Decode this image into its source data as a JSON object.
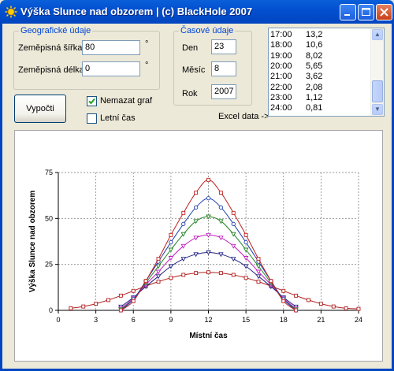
{
  "window": {
    "title": "Výška Slunce nad obzorem  |  (c) BlackHole 2007"
  },
  "geo": {
    "group_title": "Geografické údaje",
    "lat_label": "Zeměpisná šířka",
    "lat_value": "80",
    "lon_label": "Zeměpisná délka",
    "lon_value": "0",
    "unit": "°"
  },
  "time": {
    "group_title": "Časové údaje",
    "day_label": "Den",
    "day_value": "23",
    "month_label": "Měsíc",
    "month_value": "8",
    "year_label": "Rok",
    "year_value": "2007"
  },
  "actions": {
    "compute_label": "Vypočti",
    "keep_graph_label": "Nemazat graf",
    "keep_graph_checked": true,
    "summer_time_label": "Letní čas",
    "summer_time_checked": false,
    "excel_label": "Excel data ->"
  },
  "listbox": {
    "rows": [
      {
        "time": "17:00",
        "value": "13,2"
      },
      {
        "time": "18:00",
        "value": "10,6"
      },
      {
        "time": "19:00",
        "value": "8,02"
      },
      {
        "time": "20:00",
        "value": "5,65"
      },
      {
        "time": "21:00",
        "value": "3,62"
      },
      {
        "time": "22:00",
        "value": "2,08"
      },
      {
        "time": "23:00",
        "value": "1,12"
      },
      {
        "time": "24:00",
        "value": "0,81"
      }
    ]
  },
  "chart_data": {
    "type": "line",
    "xlabel": "Místní čas",
    "ylabel": "Výška Slunce nad obzorem",
    "x_ticks": [
      "0",
      "3",
      "6",
      "9",
      "12",
      "15",
      "18",
      "21",
      "24"
    ],
    "y_ticks": [
      "0",
      "25",
      "50",
      "75"
    ],
    "xlim": [
      0,
      24
    ],
    "ylim": [
      0,
      75
    ],
    "grid": true,
    "series": [
      {
        "color": "#b22020",
        "marker": "square",
        "x": [
          1,
          2,
          3,
          4,
          5,
          6,
          7,
          8,
          9,
          10,
          11,
          12,
          13,
          14,
          15,
          16,
          17,
          18,
          19,
          20,
          21,
          22,
          23,
          24
        ],
        "values": [
          1.1,
          2.1,
          3.6,
          5.6,
          8.0,
          10.6,
          13.2,
          15.6,
          17.7,
          19.3,
          20.3,
          20.7,
          20.3,
          19.3,
          17.7,
          15.6,
          13.2,
          10.6,
          8.0,
          5.6,
          3.6,
          2.1,
          1.1,
          0.8
        ]
      },
      {
        "color": "#202080",
        "marker": "triangle",
        "x": [
          5,
          6,
          7,
          8,
          9,
          10,
          11,
          12,
          13,
          14,
          15,
          16,
          17,
          18,
          19
        ],
        "values": [
          2,
          7,
          13,
          18.5,
          24,
          28,
          30.5,
          31.5,
          30.5,
          28,
          24,
          18.5,
          13,
          7,
          2
        ]
      },
      {
        "color": "#c020c0",
        "marker": "triangle",
        "x": [
          5,
          6,
          7,
          8,
          9,
          10,
          11,
          12,
          13,
          14,
          15,
          16,
          17,
          18,
          19
        ],
        "values": [
          1,
          6.5,
          14,
          21,
          28.5,
          35,
          39.5,
          41,
          39.5,
          35,
          28.5,
          21,
          14,
          6.5,
          1
        ]
      },
      {
        "color": "#208020",
        "marker": "triangle",
        "x": [
          5,
          6,
          7,
          8,
          9,
          10,
          11,
          12,
          13,
          14,
          15,
          16,
          17,
          18,
          19
        ],
        "values": [
          0.5,
          6,
          15,
          24,
          33,
          41.5,
          48.5,
          51,
          48.5,
          41.5,
          33,
          24,
          15,
          6,
          0.5
        ]
      },
      {
        "color": "#2040b0",
        "marker": "circle",
        "x": [
          5,
          6,
          7,
          8,
          9,
          10,
          11,
          12,
          13,
          14,
          15,
          16,
          17,
          18,
          19
        ],
        "values": [
          0,
          6,
          16,
          26.5,
          37,
          47,
          56,
          61,
          56,
          47,
          37,
          26.5,
          16,
          6,
          0
        ]
      },
      {
        "color": "#c02020",
        "marker": "square",
        "x": [
          5,
          6,
          7,
          8,
          9,
          10,
          11,
          12,
          13,
          14,
          15,
          16,
          17,
          18,
          19
        ],
        "values": [
          0,
          5,
          16,
          28,
          41,
          53,
          64,
          71,
          64,
          53,
          41,
          28,
          16,
          5,
          0
        ]
      }
    ]
  }
}
